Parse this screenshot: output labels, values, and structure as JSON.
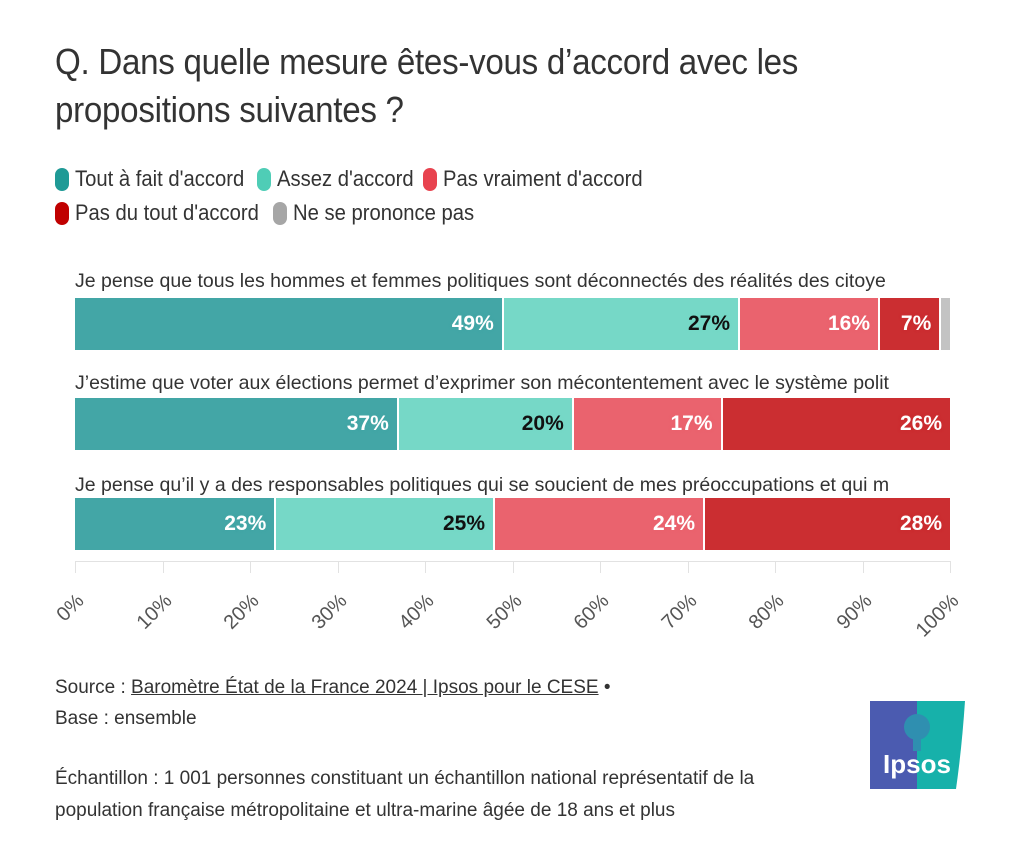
{
  "chart_data": {
    "type": "bar",
    "orientation": "horizontal-stacked-100",
    "title": "Q. Dans quelle mesure êtes-vous d’accord avec les propositions suivantes ?",
    "legend": {
      "placement": "top-left",
      "entries": [
        {
          "name": "Tout à fait d'accord",
          "color": "#1f9a96"
        },
        {
          "name": "Assez d'accord",
          "color": "#4fcdb6"
        },
        {
          "name": "Pas vraiment d'accord",
          "color": "#e8434f"
        },
        {
          "name": "Pas du tout d'accord",
          "color": "#c00000"
        },
        {
          "name": "Ne se prononce pas",
          "color": "#a6a6a6"
        }
      ]
    },
    "categories": [
      "Je pense que tous les hommes et femmes politiques sont déconnectés des réalités des citoyens",
      "J’estime que voter aux élections permet d’exprimer son mécontentement avec le système politique",
      "Je pense qu’il y a des responsables politiques qui se soucient de mes préoccupations et qui m"
    ],
    "category_labels_visible": [
      "Je pense que tous les hommes et femmes politiques sont déconnectés des réalités des citoye",
      "J’estime que voter aux élections permet d’exprimer son mécontentement avec le système polit",
      "Je pense qu’il y a des responsables politiques qui se soucient de mes préoccupations et qui m"
    ],
    "series": [
      {
        "name": "Tout à fait d'accord",
        "bar_color": "#43a6a6",
        "label_color": "#ffffff",
        "values": [
          49,
          37,
          23
        ]
      },
      {
        "name": "Assez d'accord",
        "bar_color": "#76d8c7",
        "label_color": "#111111",
        "values": [
          27,
          20,
          25
        ]
      },
      {
        "name": "Pas vraiment d'accord",
        "bar_color": "#ea636e",
        "label_color": "#ffffff",
        "values": [
          16,
          17,
          24
        ]
      },
      {
        "name": "Pas du tout d'accord",
        "bar_color": "#cb2e31",
        "label_color": "#ffffff",
        "values": [
          7,
          26,
          28
        ]
      },
      {
        "name": "Ne se prononce pas",
        "bar_color": "#c3c3c3",
        "label_color": "#333333",
        "values": [
          1,
          0,
          0
        ]
      }
    ],
    "data_labels": [
      [
        "49%",
        "27%",
        "16%",
        "7%",
        ""
      ],
      [
        "37%",
        "20%",
        "17%",
        "26%",
        ""
      ],
      [
        "23%",
        "25%",
        "24%",
        "28%",
        ""
      ]
    ],
    "xlabel": "",
    "ylabel": "",
    "xlim": [
      0,
      100
    ],
    "x_ticks": [
      "0%",
      "10%",
      "20%",
      "30%",
      "40%",
      "50%",
      "60%",
      "70%",
      "80%",
      "90%",
      "100%"
    ],
    "grid": false
  },
  "footer": {
    "source_prefix": "Source : ",
    "source_link": "Baromètre État de la France 2024 | Ipsos pour le CESE",
    "source_suffix": " •",
    "base": "Base : ensemble",
    "sample_line1": "Échantillon : 1 001 personnes constituant un échantillon national représentatif de la",
    "sample_line2": "population française métropolitaine et ultra-marine âgée de 18 ans et plus"
  },
  "logo": {
    "text": "Ipsos",
    "colors": {
      "left": "#4b5bb0",
      "right": "#17b1aa"
    }
  }
}
